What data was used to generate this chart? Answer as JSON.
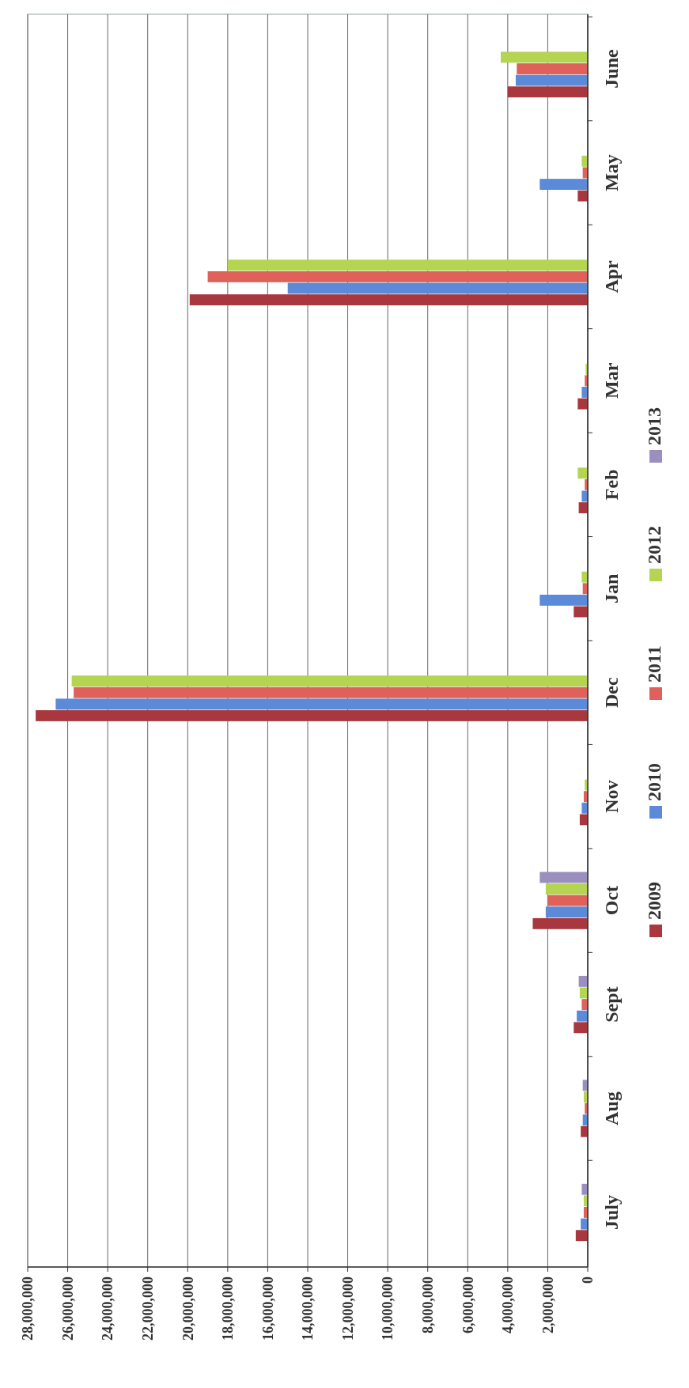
{
  "chart_data": {
    "type": "bar",
    "orientation": "horizontal",
    "categories": [
      "June",
      "May",
      "Apr",
      "Mar",
      "Feb",
      "Jan",
      "Dec",
      "Nov",
      "Oct",
      "Sept",
      "Aug",
      "July"
    ],
    "series": [
      {
        "name": "2009",
        "color": "#a8373e",
        "values": [
          4000000,
          500000,
          19900000,
          500000,
          450000,
          700000,
          27600000,
          400000,
          2750000,
          700000,
          350000,
          600000
        ]
      },
      {
        "name": "2010",
        "color": "#5b8ad8",
        "values": [
          3600000,
          2400000,
          15000000,
          300000,
          300000,
          2400000,
          26600000,
          300000,
          2100000,
          550000,
          250000,
          350000
        ]
      },
      {
        "name": "2011",
        "color": "#e0605a",
        "values": [
          3550000,
          250000,
          19000000,
          150000,
          150000,
          250000,
          25700000,
          200000,
          2000000,
          300000,
          150000,
          200000
        ]
      },
      {
        "name": "2012",
        "color": "#b4d452",
        "values": [
          4350000,
          300000,
          18000000,
          100000,
          500000,
          300000,
          25800000,
          150000,
          2100000,
          400000,
          200000,
          200000
        ]
      },
      {
        "name": "2013",
        "color": "#9b8fc0",
        "values": [
          null,
          null,
          null,
          null,
          null,
          null,
          null,
          null,
          2400000,
          450000,
          250000,
          300000
        ]
      }
    ],
    "xlim": [
      28000000,
      0
    ],
    "xticks": [
      {
        "value": 0,
        "label": "0"
      },
      {
        "value": 2000000,
        "label": "2,000,000"
      },
      {
        "value": 4000000,
        "label": "4,000,000"
      },
      {
        "value": 6000000,
        "label": "6,000,000"
      },
      {
        "value": 8000000,
        "label": "8,000,000"
      },
      {
        "value": 10000000,
        "label": "10,000,000"
      },
      {
        "value": 12000000,
        "label": "12,000,000"
      },
      {
        "value": 14000000,
        "label": "14,000,000"
      },
      {
        "value": 16000000,
        "label": "16,000,000"
      },
      {
        "value": 18000000,
        "label": "18,000,000"
      },
      {
        "value": 20000000,
        "label": "20,000,000"
      },
      {
        "value": 22000000,
        "label": "22,000,000"
      },
      {
        "value": 24000000,
        "label": "24,000,000"
      },
      {
        "value": 26000000,
        "label": "26,000,000"
      },
      {
        "value": 28000000,
        "label": "28,000,000"
      }
    ],
    "grid": "x",
    "legend": "right"
  }
}
